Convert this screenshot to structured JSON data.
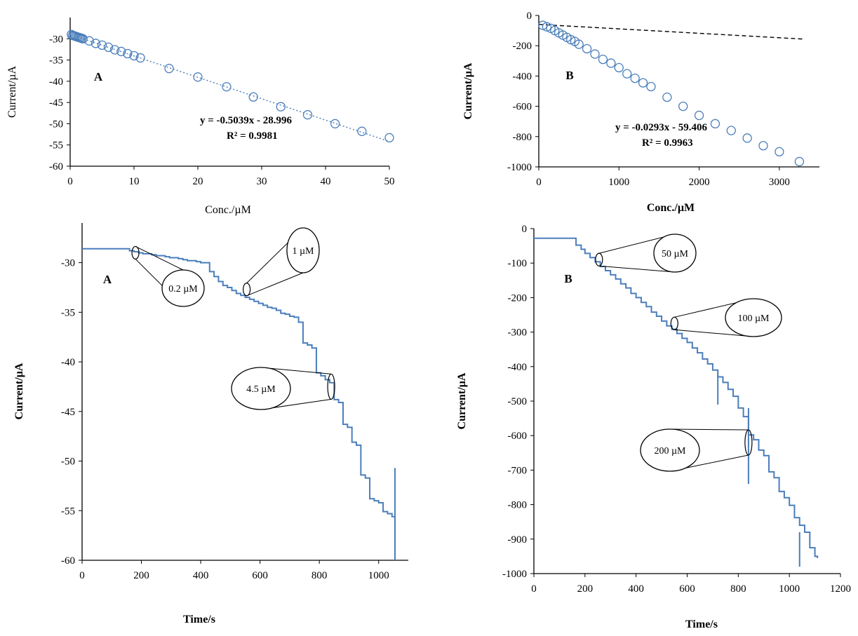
{
  "colors": {
    "series": "#4a7ebb",
    "marker_edge": "#4a7ebb",
    "axis": "#000000",
    "trendline_a": "#4a7ebb",
    "trendline_b": "#000000"
  },
  "chart_data": [
    {
      "id": "top-left",
      "type": "scatter",
      "panel_label": "A",
      "xlabel": "Conc./µM",
      "ylabel": "Current/µA",
      "xlim": [
        0,
        50
      ],
      "ylim": [
        -60,
        -25
      ],
      "xticks": [
        "0",
        "10",
        "20",
        "30",
        "40",
        "50"
      ],
      "yticks": [
        "-30",
        "-35",
        "-40",
        "-45",
        "-50",
        "-55",
        "-60"
      ],
      "marker": "open-circle",
      "trendline_style": "dotted",
      "points": {
        "x": [
          0.2,
          0.4,
          0.6,
          0.8,
          1.0,
          1.2,
          1.4,
          1.6,
          1.8,
          2.0,
          3.0,
          4.0,
          5.0,
          6.0,
          7.0,
          8.0,
          9.0,
          10.0,
          11.0,
          15.5,
          20.0,
          24.5,
          28.7,
          33.0,
          37.2,
          41.5,
          45.7,
          50.0
        ],
        "y": [
          -29.0,
          -29.2,
          -29.3,
          -29.4,
          -29.5,
          -29.6,
          -29.7,
          -29.8,
          -29.9,
          -30.0,
          -30.5,
          -31.1,
          -31.5,
          -32.0,
          -32.6,
          -33.0,
          -33.5,
          -34.0,
          -34.5,
          -37.0,
          -39.0,
          -41.3,
          -43.7,
          -46.0,
          -47.9,
          -50.0,
          -51.8,
          -53.3
        ]
      },
      "trendline": {
        "slope": -0.5039,
        "intercept": -28.996,
        "x_range": [
          0,
          50
        ]
      },
      "equation_text": "y = -0.5039x - 28.996",
      "r2_text": "R² = 0.9981"
    },
    {
      "id": "top-right",
      "type": "scatter",
      "panel_label": "B",
      "xlabel": "Conc./µM",
      "ylabel": "Current/µA",
      "xlim": [
        0,
        3500
      ],
      "ylim": [
        -1000,
        0
      ],
      "xticks": [
        "0",
        "1000",
        "2000",
        "3000"
      ],
      "yticks": [
        "0",
        "-200",
        "-400",
        "-600",
        "-800",
        "-1000"
      ],
      "marker": "open-circle",
      "trendline_style": "dashed",
      "points": {
        "x": [
          50,
          100,
          150,
          200,
          250,
          300,
          350,
          400,
          450,
          500,
          600,
          700,
          800,
          900,
          1000,
          1100,
          1200,
          1300,
          1400,
          1600,
          1800,
          2000,
          2200,
          2400,
          2600,
          2800,
          3000,
          3250
        ],
        "y": [
          -65,
          -75,
          -85,
          -100,
          -115,
          -130,
          -145,
          -160,
          -172,
          -190,
          -220,
          -255,
          -290,
          -315,
          -345,
          -385,
          -415,
          -445,
          -470,
          -540,
          -600,
          -660,
          -715,
          -760,
          -810,
          -860,
          -900,
          -965
        ]
      },
      "trendline": {
        "slope": -0.0293,
        "intercept": -59.406,
        "x_range": [
          0,
          3300
        ]
      },
      "equation_text": "y = -0.0293x - 59.406",
      "r2_text": "R² = 0.9963"
    },
    {
      "id": "bottom-left",
      "type": "line",
      "panel_label": "A",
      "xlabel": "Time/s",
      "ylabel": "Current/µA",
      "xlim": [
        0,
        1100
      ],
      "ylim": [
        -60,
        -26
      ],
      "xticks": [
        "0",
        "200",
        "400",
        "600",
        "800",
        "1000"
      ],
      "yticks": [
        "-30",
        "-35",
        "-40",
        "-45",
        "-50",
        "-55",
        "-60"
      ],
      "series": [
        {
          "x": [
            0,
            150,
            160,
            175,
            190,
            205,
            220,
            235,
            250,
            265,
            280,
            295,
            310,
            325,
            340,
            355,
            370,
            385,
            400,
            415,
            430,
            445,
            460,
            475,
            490,
            505,
            520,
            535,
            550,
            565,
            580,
            595,
            610,
            625,
            640,
            655,
            670,
            685,
            700,
            715,
            730,
            745,
            760,
            775,
            790,
            805,
            820,
            835,
            850,
            865,
            880,
            895,
            910,
            925,
            940,
            955,
            970,
            985,
            1000,
            1015,
            1030,
            1045,
            1055
          ],
          "y": [
            -28.6,
            -28.6,
            -28.8,
            -28.9,
            -29.0,
            -29.1,
            -29.1,
            -29.2,
            -29.3,
            -29.3,
            -29.4,
            -29.5,
            -29.5,
            -29.6,
            -29.7,
            -29.8,
            -29.8,
            -29.9,
            -30.0,
            -30.0,
            -30.9,
            -31.4,
            -31.9,
            -32.3,
            -32.5,
            -32.8,
            -33.1,
            -33.3,
            -33.5,
            -33.7,
            -33.9,
            -34.1,
            -34.3,
            -34.5,
            -34.6,
            -34.8,
            -35.1,
            -35.2,
            -35.4,
            -35.5,
            -36.0,
            -38.1,
            -38.3,
            -38.6,
            -41.1,
            -41.4,
            -41.8,
            -42.1,
            -43.8,
            -44.1,
            -46.3,
            -46.6,
            -48.1,
            -48.4,
            -51.4,
            -51.7,
            -53.8,
            -54.0,
            -54.2,
            -55.1,
            -55.3,
            -55.6,
            -60.0
          ]
        }
      ],
      "callouts": [
        {
          "label": "0.2 µM",
          "at": [
            180,
            -29.0
          ]
        },
        {
          "label": "1 µM",
          "at": [
            555,
            -32.7
          ]
        },
        {
          "label": "4.5 µM",
          "at": [
            840,
            -42.5
          ]
        }
      ]
    },
    {
      "id": "bottom-right",
      "type": "line",
      "panel_label": "B",
      "xlabel": "Time/s",
      "ylabel": "Current/µA",
      "xlim": [
        0,
        1200
      ],
      "ylim": [
        -1000,
        0
      ],
      "xticks": [
        "0",
        "200",
        "400",
        "600",
        "800",
        "1000",
        "1200"
      ],
      "yticks": [
        "0",
        "-100",
        "-200",
        "-300",
        "-400",
        "-500",
        "-600",
        "-700",
        "-800",
        "-900",
        "-1000"
      ],
      "series": [
        {
          "x": [
            0,
            160,
            165,
            185,
            200,
            220,
            240,
            260,
            280,
            300,
            320,
            340,
            360,
            380,
            400,
            420,
            440,
            460,
            480,
            500,
            520,
            540,
            560,
            580,
            600,
            620,
            640,
            660,
            680,
            700,
            720,
            740,
            760,
            780,
            800,
            820,
            840,
            860,
            880,
            900,
            920,
            940,
            960,
            980,
            1000,
            1020,
            1040,
            1060,
            1080,
            1100,
            1110
          ],
          "y": [
            -28,
            -28,
            -48,
            -60,
            -72,
            -84,
            -96,
            -110,
            -122,
            -134,
            -146,
            -160,
            -172,
            -188,
            -200,
            -214,
            -226,
            -242,
            -254,
            -268,
            -282,
            -292,
            -304,
            -318,
            -330,
            -346,
            -360,
            -378,
            -392,
            -410,
            -430,
            -446,
            -466,
            -486,
            -520,
            -545,
            -598,
            -612,
            -642,
            -658,
            -705,
            -722,
            -762,
            -780,
            -802,
            -838,
            -860,
            -880,
            -925,
            -950,
            -955
          ]
        }
      ],
      "callouts": [
        {
          "label": "50 µM",
          "at": [
            255,
            -90
          ]
        },
        {
          "label": "100 µM",
          "at": [
            550,
            -275
          ]
        },
        {
          "label": "200 µM",
          "at": [
            840,
            -620
          ]
        }
      ]
    }
  ]
}
